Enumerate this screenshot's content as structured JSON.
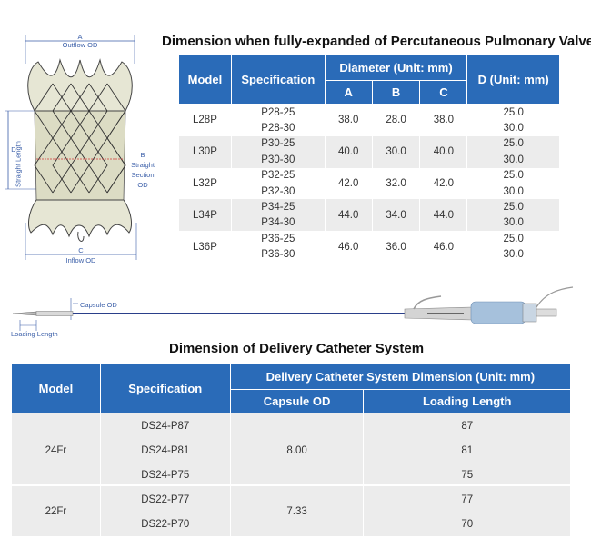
{
  "valve": {
    "title": "Dimension when fully-expanded of Percutaneous Pulmonary Valve",
    "label_a": "A",
    "label_a_sub": "Outflow OD",
    "label_b": "B",
    "label_b_sub1": "Straight",
    "label_b_sub2": "Section",
    "label_b_sub3": "OD",
    "label_c": "C",
    "label_c_sub": "Inflow OD",
    "label_d": "D",
    "label_d_sub": "Straight Length",
    "headers": {
      "model": "Model",
      "spec": "Specification",
      "diameter": "Diameter (Unit: mm)",
      "a": "A",
      "b": "B",
      "c": "C",
      "d": "D (Unit: mm)"
    },
    "rows": [
      {
        "model": "L28P",
        "specs": [
          "P28-25",
          "P28-30"
        ],
        "a": "38.0",
        "b": "28.0",
        "c": "38.0",
        "d": [
          "25.0",
          "30.0"
        ]
      },
      {
        "model": "L30P",
        "specs": [
          "P30-25",
          "P30-30"
        ],
        "a": "40.0",
        "b": "30.0",
        "c": "40.0",
        "d": [
          "25.0",
          "30.0"
        ]
      },
      {
        "model": "L32P",
        "specs": [
          "P32-25",
          "P32-30"
        ],
        "a": "42.0",
        "b": "32.0",
        "c": "42.0",
        "d": [
          "25.0",
          "30.0"
        ]
      },
      {
        "model": "L34P",
        "specs": [
          "P34-25",
          "P34-30"
        ],
        "a": "44.0",
        "b": "34.0",
        "c": "44.0",
        "d": [
          "25.0",
          "30.0"
        ]
      },
      {
        "model": "L36P",
        "specs": [
          "P36-25",
          "P36-30"
        ],
        "a": "46.0",
        "b": "36.0",
        "c": "46.0",
        "d": [
          "25.0",
          "30.0"
        ]
      }
    ]
  },
  "catheter": {
    "capsule_label": "Capsule OD",
    "loading_label": "Loading Length",
    "title": "Dimension of Delivery Catheter System",
    "headers": {
      "model": "Model",
      "spec": "Specification",
      "group": "Delivery Catheter System Dimension (Unit: mm)",
      "capsule": "Capsule OD",
      "loading": "Loading Length"
    },
    "rows": [
      {
        "model": "24Fr",
        "capsule": "8.00",
        "specs": [
          "DS24-P87",
          "DS24-P81",
          "DS24-P75"
        ],
        "loading": [
          "87",
          "81",
          "75"
        ]
      },
      {
        "model": "22Fr",
        "capsule": "7.33",
        "specs": [
          "DS22-P77",
          "DS22-P70"
        ],
        "loading": [
          "77",
          "70"
        ]
      }
    ]
  },
  "colors": {
    "header_blue": "#2a6bb8",
    "row_gray": "#ececec",
    "dim_blue": "#3a5ea8"
  }
}
